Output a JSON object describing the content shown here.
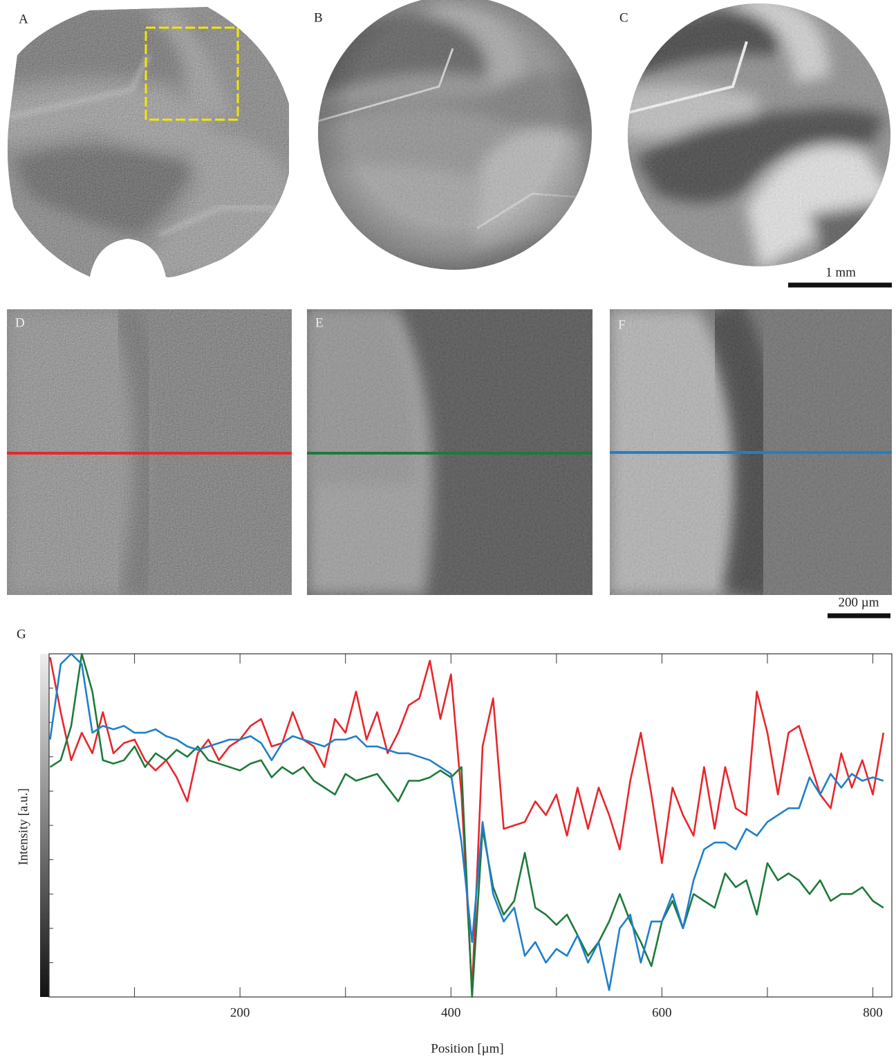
{
  "panel_labels": [
    "A",
    "B",
    "C",
    "D",
    "E",
    "F",
    "G"
  ],
  "scale_bars": [
    "1 mm",
    "200 µm"
  ],
  "chart_data": {
    "type": "line",
    "xlabel": "Position [µm]",
    "ylabel": "Intensity [a.u.]",
    "x": [
      20,
      30,
      40,
      50,
      60,
      70,
      80,
      90,
      100,
      110,
      120,
      130,
      140,
      150,
      160,
      170,
      180,
      190,
      200,
      210,
      220,
      230,
      240,
      250,
      260,
      270,
      280,
      290,
      300,
      310,
      320,
      330,
      340,
      350,
      360,
      370,
      380,
      390,
      400,
      410,
      420,
      430,
      440,
      450,
      460,
      470,
      480,
      490,
      500,
      510,
      520,
      530,
      540,
      550,
      560,
      570,
      580,
      590,
      600,
      610,
      620,
      630,
      640,
      650,
      660,
      670,
      680,
      690,
      700,
      710,
      720,
      730,
      740,
      750,
      760,
      770,
      780,
      790,
      800,
      810
    ],
    "series": [
      {
        "color": "#e8262b",
        "values": [
          9.9,
          8.3,
          6.9,
          7.7,
          7.1,
          8.3,
          7.1,
          7.4,
          7.5,
          6.9,
          6.6,
          6.9,
          6.4,
          5.7,
          7.1,
          7.5,
          6.9,
          7.3,
          7.5,
          7.9,
          8.1,
          7.3,
          7.4,
          8.3,
          7.5,
          7.3,
          6.7,
          8.1,
          7.7,
          8.9,
          7.5,
          8.3,
          7.1,
          7.7,
          8.5,
          8.7,
          9.8,
          8.1,
          9.4,
          5.9,
          0.2,
          7.3,
          8.7,
          4.9,
          5.0,
          5.1,
          5.7,
          5.3,
          5.9,
          4.7,
          6.1,
          4.9,
          6.1,
          5.3,
          4.3,
          6.3,
          7.7,
          5.9,
          3.9,
          6.1,
          5.3,
          4.7,
          6.7,
          4.9,
          6.7,
          5.5,
          5.3,
          8.9,
          7.7,
          5.9,
          7.7,
          7.9,
          6.9,
          5.9,
          5.5,
          7.1,
          6.1,
          6.9,
          5.9,
          7.7
        ]
      },
      {
        "color": "#1d7a3a",
        "values": [
          6.7,
          6.9,
          7.9,
          10.0,
          8.9,
          6.9,
          6.8,
          6.9,
          7.3,
          6.7,
          7.1,
          6.9,
          7.2,
          7.0,
          7.3,
          6.9,
          6.8,
          6.7,
          6.6,
          6.8,
          6.9,
          6.4,
          6.7,
          6.5,
          6.7,
          6.3,
          6.1,
          5.9,
          6.5,
          6.3,
          6.4,
          6.5,
          6.1,
          5.7,
          6.3,
          6.3,
          6.4,
          6.6,
          6.4,
          6.7,
          0.0,
          4.9,
          3.2,
          2.4,
          2.8,
          4.2,
          2.6,
          2.4,
          2.1,
          2.4,
          1.8,
          1.2,
          1.6,
          2.2,
          3.0,
          2.2,
          1.6,
          0.9,
          2.2,
          2.8,
          2.0,
          3.0,
          2.8,
          2.6,
          3.6,
          3.2,
          3.4,
          2.4,
          3.9,
          3.4,
          3.6,
          3.4,
          3.0,
          3.4,
          2.8,
          3.0,
          3.0,
          3.2,
          2.8,
          2.6
        ]
      },
      {
        "color": "#1f7fc9",
        "values": [
          7.5,
          9.7,
          10.0,
          9.7,
          7.7,
          7.9,
          7.8,
          7.9,
          7.7,
          7.7,
          7.8,
          7.6,
          7.5,
          7.3,
          7.2,
          7.3,
          7.4,
          7.5,
          7.5,
          7.6,
          7.4,
          6.9,
          7.4,
          7.6,
          7.5,
          7.4,
          7.3,
          7.5,
          7.5,
          7.6,
          7.3,
          7.3,
          7.2,
          7.1,
          7.1,
          7.0,
          6.9,
          6.7,
          6.5,
          4.5,
          1.6,
          5.1,
          3.0,
          2.2,
          2.6,
          1.2,
          1.6,
          1.0,
          1.4,
          1.2,
          1.8,
          1.0,
          1.6,
          0.2,
          2.0,
          2.4,
          1.0,
          2.2,
          2.2,
          3.0,
          2.0,
          3.4,
          4.3,
          4.5,
          4.5,
          4.3,
          4.9,
          4.7,
          5.1,
          5.3,
          5.5,
          5.5,
          6.4,
          5.9,
          6.5,
          6.1,
          6.5,
          6.3,
          6.4,
          6.3
        ]
      }
    ],
    "xlim": [
      19,
      818
    ],
    "xticks": [
      200,
      400,
      600,
      800
    ],
    "xminorticks": [
      100,
      300,
      500,
      700
    ],
    "ylim": [
      0,
      10
    ],
    "yminorticks": [
      1,
      2,
      3,
      4,
      5,
      6,
      7,
      8,
      9
    ]
  }
}
